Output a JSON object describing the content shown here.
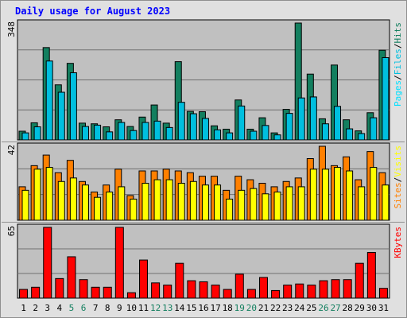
{
  "chart_data": [
    {
      "type": "bar",
      "title": "Daily usage for August 2023",
      "ylabel_parts": [
        "Pages",
        "Files",
        "Hits"
      ],
      "ylim": [
        0,
        348
      ],
      "max_label": "348",
      "categories": [
        "1",
        "2",
        "3",
        "4",
        "5",
        "6",
        "7",
        "8",
        "9",
        "10",
        "11",
        "12",
        "13",
        "14",
        "15",
        "16",
        "17",
        "18",
        "19",
        "20",
        "21",
        "22",
        "23",
        "24",
        "25",
        "26",
        "27",
        "28",
        "29",
        "30",
        "31"
      ],
      "weekend_days": [
        "5",
        "6",
        "12",
        "13",
        "19",
        "20",
        "26",
        "27"
      ],
      "series": [
        {
          "name": "Hits",
          "color": "#137f5f",
          "values": [
            26,
            51,
            275,
            164,
            228,
            50,
            48,
            39,
            60,
            40,
            68,
            104,
            50,
            233,
            85,
            84,
            42,
            32,
            119,
            32,
            66,
            21,
            91,
            348,
            196,
            63,
            223,
            60,
            27,
            81,
            267
          ]
        },
        {
          "name": "Files",
          "color": "#00bfdf",
          "values": [
            21,
            39,
            235,
            142,
            200,
            40,
            44,
            24,
            52,
            28,
            52,
            56,
            37,
            112,
            78,
            64,
            30,
            21,
            101,
            26,
            43,
            15,
            79,
            125,
            128,
            48,
            100,
            33,
            19,
            66,
            245
          ]
        },
        {
          "name": "Pages",
          "color": "#00e0ff",
          "values": [
            0,
            0,
            0,
            0,
            0,
            0,
            0,
            0,
            0,
            0,
            0,
            0,
            0,
            0,
            0,
            0,
            0,
            0,
            0,
            0,
            0,
            0,
            0,
            0,
            0,
            0,
            0,
            0,
            0,
            0,
            0
          ]
        }
      ]
    },
    {
      "type": "bar",
      "ylabel_parts": [
        "Sites",
        "Visits"
      ],
      "ylim": [
        0,
        42
      ],
      "max_label": "42",
      "categories": [
        "1",
        "2",
        "3",
        "4",
        "5",
        "6",
        "7",
        "8",
        "9",
        "10",
        "11",
        "12",
        "13",
        "14",
        "15",
        "16",
        "17",
        "18",
        "19",
        "20",
        "21",
        "22",
        "23",
        "24",
        "25",
        "26",
        "27",
        "28",
        "29",
        "30",
        "31"
      ],
      "series": [
        {
          "name": "Visits",
          "color": "#ff8000",
          "values": [
            19,
            31,
            37,
            27,
            34,
            22,
            16,
            20,
            29,
            14,
            28,
            28,
            29,
            28,
            27,
            25,
            25,
            17,
            25,
            23,
            21,
            19,
            22,
            24,
            35,
            42,
            31,
            36,
            23,
            39,
            27
          ]
        },
        {
          "name": "Sites",
          "color": "#ffff00",
          "values": [
            17,
            29,
            30,
            22,
            24,
            20,
            13,
            16,
            19,
            12,
            21,
            23,
            23,
            21,
            22,
            20,
            20,
            12,
            17,
            18,
            15,
            16,
            19,
            19,
            29,
            29,
            30,
            28,
            19,
            30,
            20
          ]
        }
      ]
    },
    {
      "type": "bar",
      "ylabel_parts": [
        "KBytes"
      ],
      "ylim": [
        0,
        65
      ],
      "max_label": "65",
      "categories": [
        "1",
        "2",
        "3",
        "4",
        "5",
        "6",
        "7",
        "8",
        "9",
        "10",
        "11",
        "12",
        "13",
        "14",
        "15",
        "16",
        "17",
        "18",
        "19",
        "20",
        "21",
        "22",
        "23",
        "24",
        "25",
        "26",
        "27",
        "28",
        "29",
        "30",
        "31"
      ],
      "series": [
        {
          "name": "KBytes",
          "color": "#ff0000",
          "values": [
            8,
            10,
            65,
            18,
            38,
            17,
            10,
            10,
            65,
            5,
            35,
            14,
            12,
            32,
            16,
            15,
            12,
            8,
            22,
            8,
            19,
            7,
            12,
            13,
            12,
            16,
            17,
            17,
            32,
            42,
            9
          ]
        }
      ]
    }
  ],
  "colors": {
    "frame_bg": "#e0e0e0",
    "plot_bg": "#c0c0c0",
    "title": "#0000ff",
    "weekday_label": "#000000",
    "weekend_label": "#137f5f",
    "separator": "#8f8f8f"
  }
}
